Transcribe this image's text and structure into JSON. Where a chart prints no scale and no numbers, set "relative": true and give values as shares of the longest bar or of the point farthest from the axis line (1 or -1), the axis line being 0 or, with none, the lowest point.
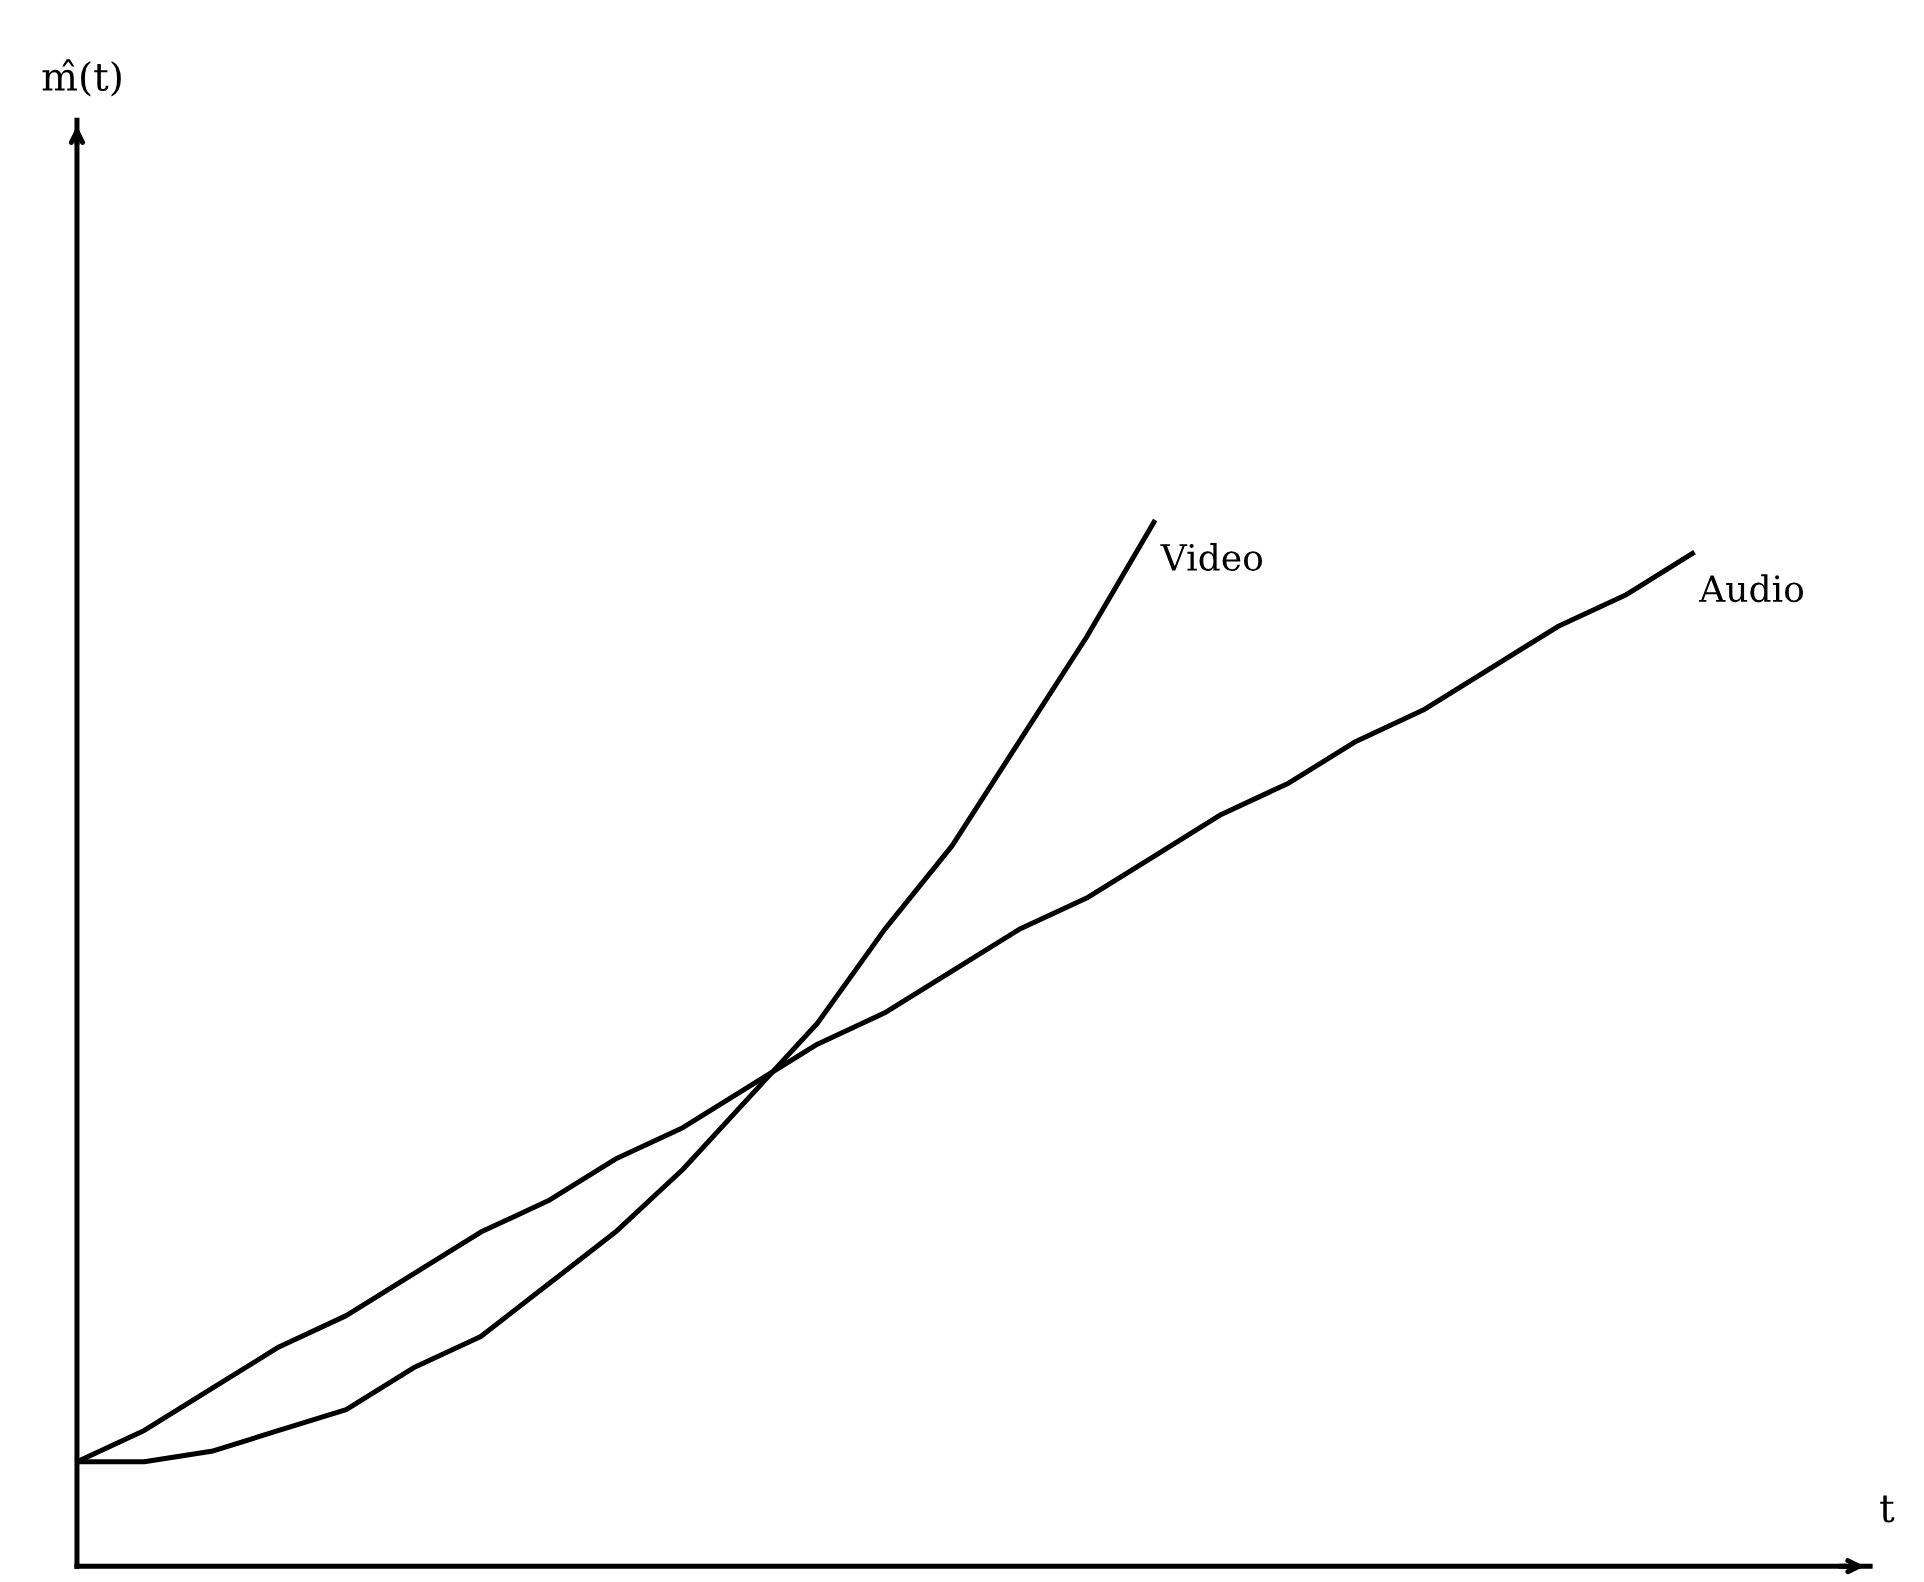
{
  "chart_data": {
    "type": "line",
    "relative": true,
    "xlabel": "t",
    "annotations": [
      "m̂(t)"
    ],
    "categories": [
      null,
      null,
      null,
      null,
      null,
      null,
      null,
      null,
      null,
      null,
      null,
      null,
      null,
      null,
      null,
      null,
      null,
      null,
      null,
      null,
      null,
      null,
      null,
      null,
      null
    ],
    "series": [
      {
        "name": "Video",
        "color": "#000000",
        "values": [
          0.1,
          0.1,
          0.11,
          0.13,
          0.15,
          0.19,
          0.22,
          0.27,
          0.32,
          0.38,
          0.45,
          0.52,
          0.61,
          0.69,
          0.79,
          0.89,
          1.0,
          null,
          null,
          null,
          null,
          null,
          null,
          null,
          null
        ]
      },
      {
        "name": "Audio",
        "color": "#000000",
        "values": [
          0.1,
          0.13,
          0.17,
          0.21,
          0.24,
          0.28,
          0.32,
          0.35,
          0.39,
          0.42,
          0.46,
          0.5,
          0.53,
          0.57,
          0.61,
          0.64,
          0.68,
          0.72,
          0.75,
          0.79,
          0.82,
          0.86,
          0.9,
          0.93,
          0.97
        ]
      }
    ]
  }
}
